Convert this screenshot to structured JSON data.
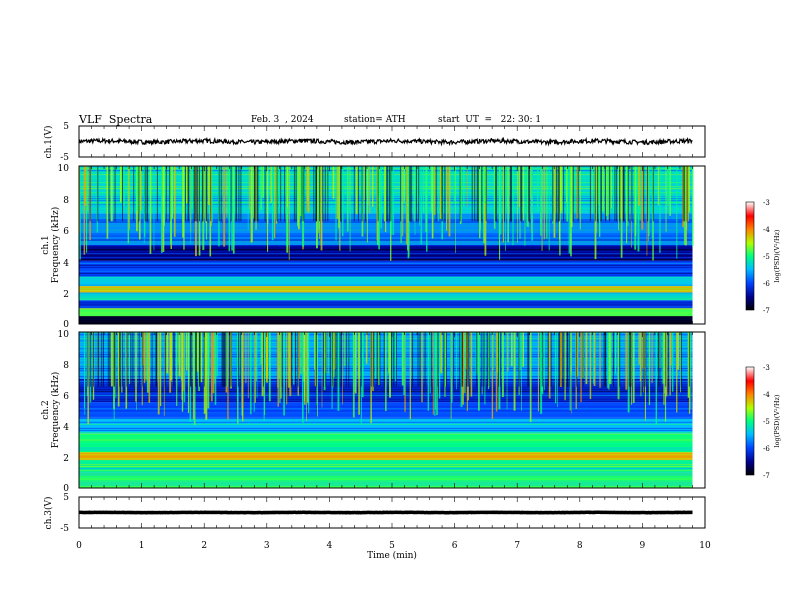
{
  "header": {
    "title": "VLF  Spectra",
    "date": "Feb. 3  , 2024",
    "station": "station= ATH",
    "start": "start  UT  =   22: 30: 1"
  },
  "chart_data": [
    {
      "type": "line",
      "id": "ch1",
      "ylabel": "ch.1(V)",
      "xlim": [
        0,
        10
      ],
      "ylim": [
        -5,
        5
      ],
      "y_ticks": [
        "5",
        "-5"
      ],
      "series": [
        {
          "color": "#000000",
          "mean": 0.0,
          "amplitude": 0.7,
          "x_end": 9.8
        }
      ]
    },
    {
      "type": "heatmap",
      "id": "ch1-spectrogram",
      "ylabel_channel": "ch.1",
      "ylabel": "Frequency  (kHz)",
      "xlim": [
        0,
        10
      ],
      "ylim": [
        0,
        10
      ],
      "y_ticks": [
        "0",
        "2",
        "4",
        "6",
        "8",
        "10"
      ],
      "data_x_end": 9.8,
      "colorbar": {
        "label": "log(PSD)(V²/Hz)",
        "range": [
          -7,
          -3
        ],
        "ticks": [
          "-3",
          "-4",
          "-5",
          "-6",
          "-7"
        ]
      },
      "bands": [
        {
          "f_low": 0.0,
          "f_high": 0.5,
          "value": -6.8
        },
        {
          "f_low": 0.5,
          "f_high": 1.0,
          "value": -4.8
        },
        {
          "f_low": 1.0,
          "f_high": 1.5,
          "value": -6.1
        },
        {
          "f_low": 1.5,
          "f_high": 2.0,
          "value": -5.3
        },
        {
          "f_low": 2.0,
          "f_high": 2.4,
          "value": -4.2
        },
        {
          "f_low": 2.4,
          "f_high": 3.0,
          "value": -5.4
        },
        {
          "f_low": 3.0,
          "f_high": 4.0,
          "value": -6.0
        },
        {
          "f_low": 4.0,
          "f_high": 5.0,
          "value": -6.5
        },
        {
          "f_low": 5.0,
          "f_high": 7.0,
          "value": -5.8
        },
        {
          "f_low": 7.0,
          "f_high": 10.0,
          "value": -5.3
        }
      ]
    },
    {
      "type": "heatmap",
      "id": "ch2-spectrogram",
      "ylabel_channel": "ch.2",
      "ylabel": "Frequency  (kHz)",
      "xlim": [
        0,
        10
      ],
      "ylim": [
        0,
        10
      ],
      "y_ticks": [
        "0",
        "2",
        "4",
        "6",
        "8",
        "10"
      ],
      "data_x_end": 9.8,
      "colorbar": {
        "label": "log(PSD)(V²/Hz)",
        "range": [
          -7,
          -3
        ],
        "ticks": [
          "-3",
          "-4",
          "-5",
          "-6",
          "-7"
        ]
      },
      "bands": [
        {
          "f_low": 0.0,
          "f_high": 1.0,
          "value": -4.9
        },
        {
          "f_low": 1.0,
          "f_high": 1.8,
          "value": -5.1
        },
        {
          "f_low": 1.8,
          "f_high": 2.3,
          "value": -4.1
        },
        {
          "f_low": 2.3,
          "f_high": 3.5,
          "value": -5.0
        },
        {
          "f_low": 3.5,
          "f_high": 4.5,
          "value": -5.5
        },
        {
          "f_low": 4.5,
          "f_high": 5.5,
          "value": -6.0
        },
        {
          "f_low": 5.5,
          "f_high": 7.0,
          "value": -6.2
        },
        {
          "f_low": 7.0,
          "f_high": 10.0,
          "value": -5.6
        }
      ]
    },
    {
      "type": "line",
      "id": "ch3",
      "ylabel": "ch.3(V)",
      "xlabel": "Time  (min)",
      "xlim": [
        0,
        10
      ],
      "ylim": [
        -5,
        5
      ],
      "y_ticks": [
        "5",
        "-5"
      ],
      "x_ticks": [
        "0",
        "1",
        "2",
        "3",
        "4",
        "5",
        "6",
        "7",
        "8",
        "9",
        "10"
      ],
      "series": [
        {
          "color": "#000000",
          "mean": 0.0,
          "amplitude": 0.1,
          "x_end": 9.8
        }
      ]
    }
  ]
}
